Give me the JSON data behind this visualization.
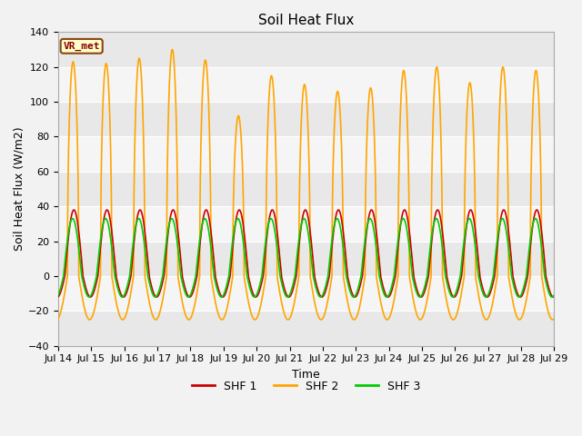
{
  "title": "Soil Heat Flux",
  "xlabel": "Time",
  "ylabel": "Soil Heat Flux (W/m2)",
  "ylim": [
    -40,
    140
  ],
  "yticks": [
    -40,
    -20,
    0,
    20,
    40,
    60,
    80,
    100,
    120,
    140
  ],
  "xtick_labels": [
    "Jul 14",
    "Jul 15",
    "Jul 16",
    "Jul 17",
    "Jul 18",
    "Jul 19",
    "Jul 20",
    "Jul 21",
    "Jul 22",
    "Jul 23",
    "Jul 24",
    "Jul 25",
    "Jul 26",
    "Jul 27",
    "Jul 28",
    "Jul 29"
  ],
  "color_shf1": "#cc0000",
  "color_shf2": "#ffa500",
  "color_shf3": "#00cc00",
  "label_shf1": "SHF 1",
  "label_shf2": "SHF 2",
  "label_shf3": "SHF 3",
  "site_label": "VR_met",
  "bg_color": "#e8e8e8",
  "linewidth": 1.2,
  "n_days": 15,
  "shf2_day_peaks": [
    123,
    122,
    125,
    130,
    124,
    92,
    115,
    110,
    106,
    108,
    118,
    120,
    111,
    120,
    118
  ],
  "shf2_night_min": -25,
  "shf1_amplitude": 38,
  "shf1_night_min": -12,
  "shf3_amplitude": 33,
  "shf3_night_min": -12,
  "title_fontsize": 11,
  "axis_fontsize": 9,
  "tick_fontsize": 8
}
